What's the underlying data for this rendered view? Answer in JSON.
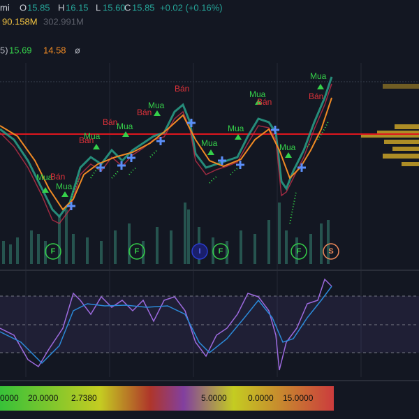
{
  "legend": {
    "symbol_suffix": "mi",
    "open_label": "O",
    "open": "15.85",
    "high_label": "H",
    "high": "16.15",
    "low_label": "L",
    "low": "15.60",
    "close_label": "C",
    "close": "15.85",
    "change": "+0.02 (+0.16%)"
  },
  "volume": {
    "value": "90.158M",
    "average": "302.991M"
  },
  "indicator": {
    "suffix": "5)",
    "fast": "15.69",
    "slow": "14.58",
    "extra": "ø"
  },
  "signals": [
    "Mua",
    "Mua",
    "Mua",
    "Mua",
    "Mua",
    "Mua",
    "Mua",
    "Mua",
    "Mua",
    "Mua",
    "Bán",
    "Bán",
    "Bán",
    "Bán",
    "Bán",
    "Bán",
    "Bán"
  ],
  "markers": [
    "F",
    "F",
    "I",
    "F",
    "F",
    "S"
  ],
  "bottom_values": [
    "0000",
    "20.0000",
    "2.7380",
    "5.0000",
    "0.0000",
    "15.0000"
  ]
}
